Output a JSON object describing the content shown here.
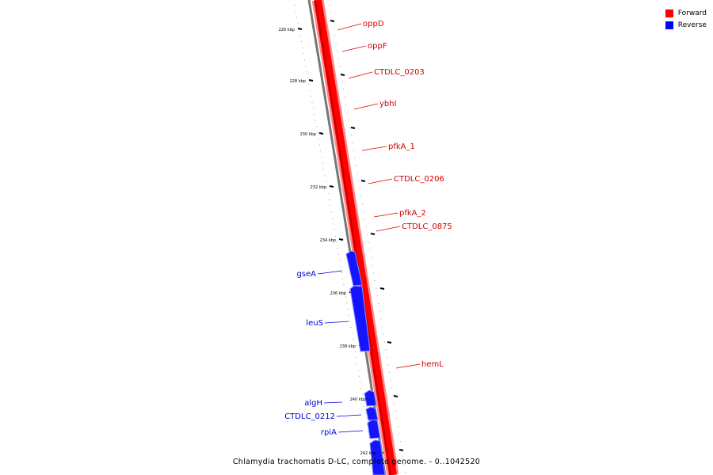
{
  "legend": {
    "forward_label": "Forward",
    "forward_color": "#ff0000",
    "reverse_label": "Reverse",
    "reverse_color": "#0000ff"
  },
  "caption": "Chlamydia trachomatis D-LC, complete genome. - 0..1042520",
  "ticks": [
    "226 kbp",
    "228 kbp",
    "230 kbp",
    "232 kbp",
    "234 kbp",
    "236 kbp",
    "238 kbp",
    "240 kbp",
    "242 kbp"
  ],
  "forward_genes": [
    "oppD",
    "oppF",
    "CTDLC_0203",
    "ybhI",
    "pfkA_1",
    "CTDLC_0206",
    "pfkA_2",
    "CTDLC_0875",
    "hemL"
  ],
  "reverse_genes": [
    "gseA",
    "leuS",
    "algH",
    "CTDLC_0212",
    "rpiA"
  ]
}
